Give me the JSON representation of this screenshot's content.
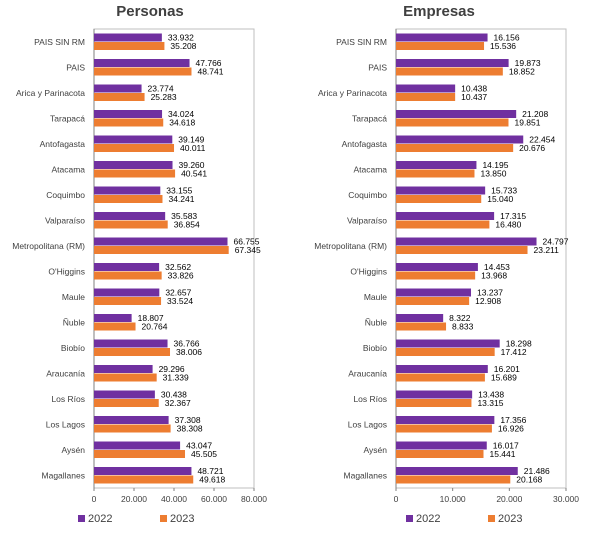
{
  "chart_data": [
    {
      "type": "bar",
      "orientation": "horizontal",
      "title": "Personas",
      "categories": [
        "PAIS SIN RM",
        "PAIS",
        "Arica y Parinacota",
        "Tarapacá",
        "Antofagasta",
        "Atacama",
        "Coquimbo",
        "Valparaíso",
        "Metropolitana (RM)",
        "O'Higgins",
        "Maule",
        "Ñuble",
        "Biobío",
        "Araucanía",
        "Los Ríos",
        "Los Lagos",
        "Aysén",
        "Magallanes"
      ],
      "series": [
        {
          "name": "2022",
          "color": "#7030a0",
          "values": [
            33932,
            47766,
            23774,
            34024,
            39149,
            39260,
            33155,
            35583,
            66755,
            32562,
            32657,
            18807,
            36766,
            29296,
            30438,
            37308,
            43047,
            48721
          ],
          "labels": [
            "33.932",
            "47.766",
            "23.774",
            "34.024",
            "39.149",
            "39.260",
            "33.155",
            "35.583",
            "66.755",
            "32.562",
            "32.657",
            "18.807",
            "36.766",
            "29.296",
            "30.438",
            "37.308",
            "43.047",
            "48.721"
          ]
        },
        {
          "name": "2023",
          "color": "#ed7d31",
          "values": [
            35208,
            48741,
            25283,
            34618,
            40011,
            40541,
            34241,
            36854,
            67345,
            33826,
            33524,
            20764,
            38006,
            31339,
            32367,
            38308,
            45505,
            49618
          ],
          "labels": [
            "35.208",
            "48.741",
            "25.283",
            "34.618",
            "40.011",
            "40.541",
            "34.241",
            "36.854",
            "67.345",
            "33.826",
            "33.524",
            "20.764",
            "38.006",
            "31.339",
            "32.367",
            "38.308",
            "45.505",
            "49.618"
          ]
        }
      ],
      "xlim": [
        0,
        80000
      ],
      "xticks": [
        "0",
        "20.000",
        "40.000",
        "60.000",
        "80.000"
      ],
      "legend": "bottom"
    },
    {
      "type": "bar",
      "orientation": "horizontal",
      "title": "Empresas",
      "categories": [
        "PAIS SIN RM",
        "PAIS",
        "Arica y Parinacota",
        "Tarapacá",
        "Antofagasta",
        "Atacama",
        "Coquimbo",
        "Valparaíso",
        "Metropolitana (RM)",
        "O'Higgins",
        "Maule",
        "Ñuble",
        "Biobío",
        "Araucanía",
        "Los Ríos",
        "Los Lagos",
        "Aysén",
        "Magallanes"
      ],
      "series": [
        {
          "name": "2022",
          "color": "#7030a0",
          "values": [
            16156,
            19873,
            10438,
            21208,
            22454,
            14195,
            15733,
            17315,
            24797,
            14453,
            13237,
            8322,
            18298,
            16201,
            13438,
            17356,
            16017,
            21486
          ],
          "labels": [
            "16.156",
            "19.873",
            "10.438",
            "21.208",
            "22.454",
            "14.195",
            "15.733",
            "17.315",
            "24.797",
            "14.453",
            "13.237",
            "8.322",
            "18.298",
            "16.201",
            "13.438",
            "17.356",
            "16.017",
            "21.486"
          ]
        },
        {
          "name": "2023",
          "color": "#ed7d31",
          "values": [
            15536,
            18852,
            10437,
            19851,
            20676,
            13850,
            15040,
            16480,
            23211,
            13968,
            12908,
            8833,
            17412,
            15689,
            13315,
            16926,
            15441,
            20168
          ],
          "labels": [
            "15.536",
            "18.852",
            "10.437",
            "19.851",
            "20.676",
            "13.850",
            "15.040",
            "16.480",
            "23.211",
            "13.968",
            "12.908",
            "8.833",
            "17.412",
            "15.689",
            "13.315",
            "16.926",
            "15.441",
            "20.168"
          ]
        }
      ],
      "xlim": [
        0,
        30000
      ],
      "xticks": [
        "0",
        "10.000",
        "20.000",
        "30.000"
      ],
      "legend": "bottom"
    }
  ]
}
